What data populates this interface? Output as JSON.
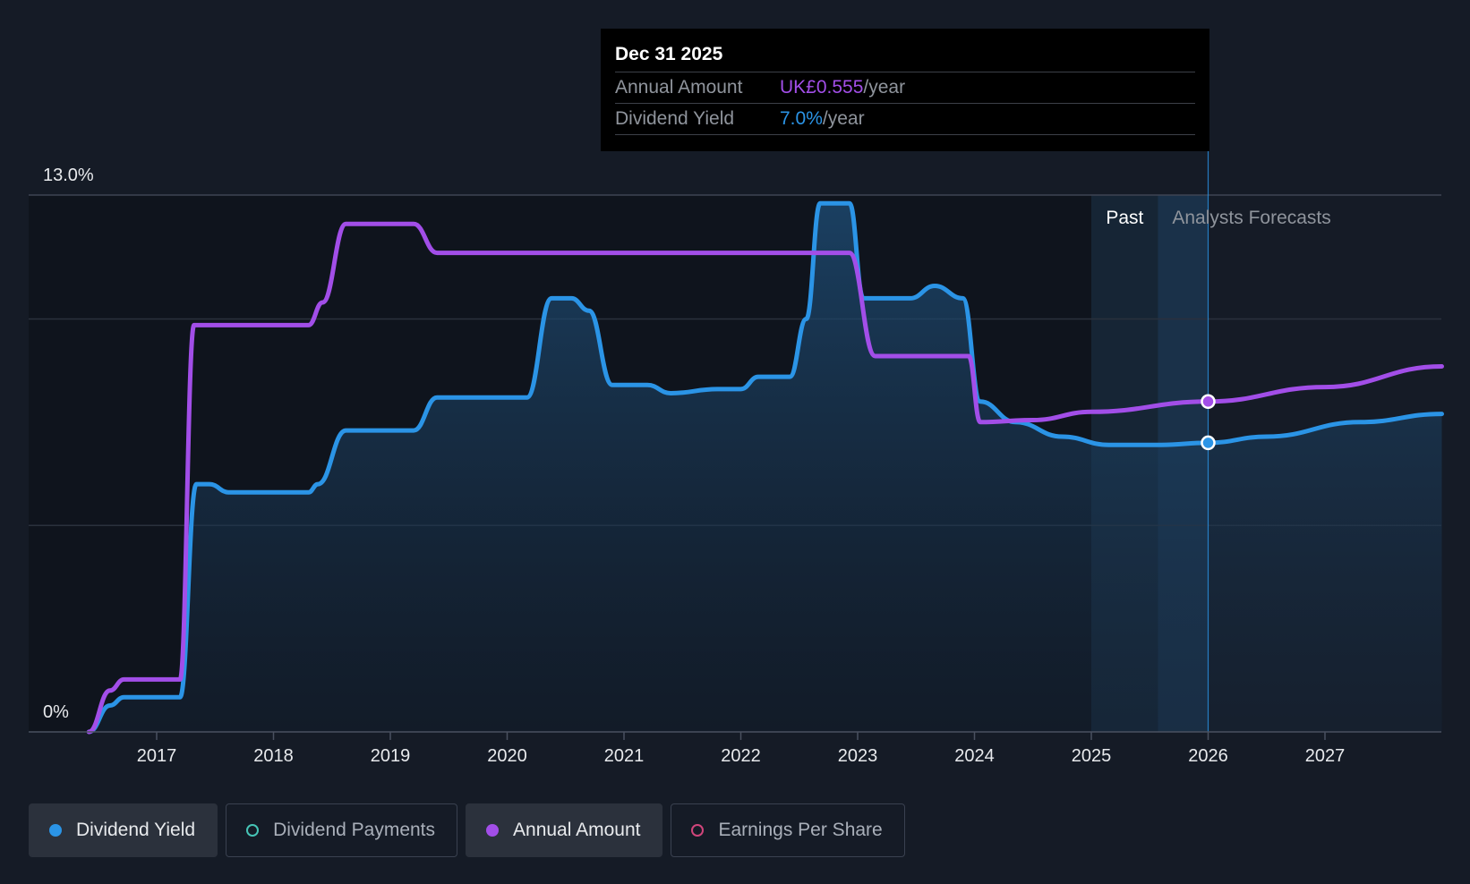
{
  "chart_data": {
    "type": "line",
    "x_ticks": [
      "2017",
      "2018",
      "2019",
      "2020",
      "2021",
      "2022",
      "2023",
      "2024",
      "2025",
      "2026",
      "2027"
    ],
    "y_tick_labels": [
      "13.0%",
      "0%"
    ],
    "ylim": [
      0,
      13.0
    ],
    "past_label": "Past",
    "forecast_label": "Analysts Forecasts",
    "past_end_x": 2025.57,
    "series": [
      {
        "name": "Dividend Yield",
        "color": "#2b94e6",
        "filled": true,
        "points": [
          [
            2016.42,
            0.0
          ],
          [
            2016.6,
            0.64
          ],
          [
            2016.72,
            0.84
          ],
          [
            2017.0,
            0.84
          ],
          [
            2017.2,
            0.84
          ],
          [
            2017.34,
            6.0
          ],
          [
            2017.45,
            6.0
          ],
          [
            2017.62,
            5.8
          ],
          [
            2018.0,
            5.8
          ],
          [
            2018.3,
            5.8
          ],
          [
            2018.38,
            6.0
          ],
          [
            2018.62,
            7.3
          ],
          [
            2019.0,
            7.3
          ],
          [
            2019.2,
            7.3
          ],
          [
            2019.4,
            8.1
          ],
          [
            2020.0,
            8.1
          ],
          [
            2020.17,
            8.1
          ],
          [
            2020.38,
            10.5
          ],
          [
            2020.55,
            10.5
          ],
          [
            2020.7,
            10.2
          ],
          [
            2020.9,
            8.4
          ],
          [
            2021.2,
            8.4
          ],
          [
            2021.4,
            8.2
          ],
          [
            2021.8,
            8.3
          ],
          [
            2022.0,
            8.3
          ],
          [
            2022.15,
            8.6
          ],
          [
            2022.42,
            8.6
          ],
          [
            2022.56,
            10.0
          ],
          [
            2022.68,
            12.8
          ],
          [
            2022.93,
            12.8
          ],
          [
            2023.05,
            10.5
          ],
          [
            2023.22,
            10.5
          ],
          [
            2023.45,
            10.5
          ],
          [
            2023.66,
            10.8
          ],
          [
            2023.9,
            10.5
          ],
          [
            2024.05,
            8.0
          ],
          [
            2024.35,
            7.5
          ],
          [
            2024.75,
            7.15
          ],
          [
            2025.15,
            6.95
          ],
          [
            2025.6,
            6.95
          ],
          [
            2026.0,
            7.0
          ],
          [
            2026.5,
            7.15
          ],
          [
            2027.3,
            7.5
          ],
          [
            2028.0,
            7.7
          ]
        ]
      },
      {
        "name": "Annual Amount",
        "color": "#a24ee8",
        "filled": false,
        "points": [
          [
            2016.42,
            0.0
          ],
          [
            2016.6,
            1.0
          ],
          [
            2016.72,
            1.27
          ],
          [
            2017.0,
            1.27
          ],
          [
            2017.2,
            1.27
          ],
          [
            2017.32,
            9.85
          ],
          [
            2017.5,
            9.85
          ],
          [
            2018.0,
            9.85
          ],
          [
            2018.3,
            9.85
          ],
          [
            2018.42,
            10.4
          ],
          [
            2018.62,
            12.3
          ],
          [
            2019.0,
            12.3
          ],
          [
            2019.2,
            12.3
          ],
          [
            2019.4,
            11.6
          ],
          [
            2020.0,
            11.6
          ],
          [
            2021.0,
            11.6
          ],
          [
            2022.0,
            11.6
          ],
          [
            2022.93,
            11.6
          ],
          [
            2023.15,
            9.1
          ],
          [
            2023.5,
            9.1
          ],
          [
            2023.95,
            9.1
          ],
          [
            2024.05,
            7.5
          ],
          [
            2024.5,
            7.55
          ],
          [
            2025.0,
            7.75
          ],
          [
            2026.0,
            8.0
          ],
          [
            2027.0,
            8.35
          ],
          [
            2028.0,
            8.85
          ]
        ]
      }
    ],
    "hover": {
      "x": 2026.0,
      "date": "Dec 31 2025",
      "rows": [
        {
          "label": "Annual Amount",
          "value": "UK£0.555",
          "unit": "/year",
          "color": "#a24ee8"
        },
        {
          "label": "Dividend Yield",
          "value": "7.0%",
          "unit": "/year",
          "color": "#2b94e6"
        }
      ]
    }
  },
  "legend": {
    "items": [
      {
        "label": "Dividend Yield",
        "color": "#2b94e6",
        "active": true
      },
      {
        "label": "Dividend Payments",
        "color": "#46c4b6",
        "active": false
      },
      {
        "label": "Annual Amount",
        "color": "#a24ee8",
        "active": true
      },
      {
        "label": "Earnings Per Share",
        "color": "#d0457b",
        "active": false
      }
    ]
  }
}
